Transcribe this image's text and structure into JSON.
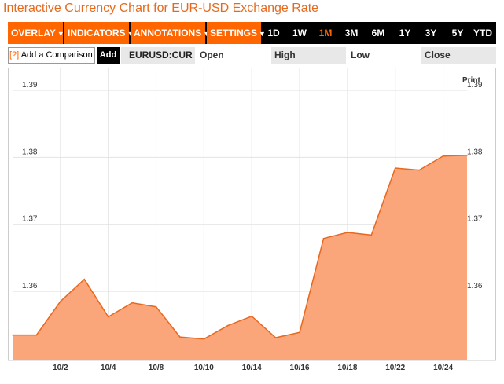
{
  "page": {
    "title": "Interactive Currency Chart for EUR-USD Exchange Rate",
    "print_label": "Print"
  },
  "toolbar": {
    "menus": [
      {
        "label": "OVERLAY",
        "icon": "triangle-down-icon"
      },
      {
        "label": "INDICATORS",
        "icon": "triangle-down-icon"
      },
      {
        "label": "ANNOTATIONS",
        "icon": "triangle-down-icon"
      },
      {
        "label": "SETTINGS",
        "icon": "triangle-down-icon"
      }
    ],
    "ranges": [
      "1D",
      "1W",
      "1M",
      "3M",
      "6M",
      "1Y",
      "3Y",
      "5Y",
      "YTD"
    ],
    "active_range": "1M"
  },
  "comparison": {
    "help_label": "[?]",
    "label": "Add a Comparison",
    "add_label": "Add"
  },
  "quote": {
    "ticker": "EURUSD:CUR",
    "open_label": "Open",
    "high_label": "High",
    "low_label": "Low",
    "close_label": "Close"
  },
  "colors": {
    "accent": "#ff6600",
    "title": "#e66a1e",
    "area_fill": "#fba57a",
    "area_line": "#e8681e"
  },
  "chart_data": {
    "type": "area",
    "x": [
      "9/30",
      "10/1",
      "10/2",
      "10/3",
      "10/4",
      "10/7",
      "10/8",
      "10/9",
      "10/10",
      "10/11",
      "10/14",
      "10/15",
      "10/16",
      "10/17",
      "10/18",
      "10/21",
      "10/22",
      "10/23",
      "10/24",
      "10/25"
    ],
    "values": [
      1.3535,
      1.3535,
      1.3585,
      1.3618,
      1.3562,
      1.3583,
      1.3577,
      1.3532,
      1.3529,
      1.3549,
      1.3563,
      1.3531,
      1.3539,
      1.3679,
      1.3688,
      1.3684,
      1.3784,
      1.3781,
      1.3802,
      1.3803
    ],
    "xticks": [
      "10/2",
      "10/4",
      "10/8",
      "10/10",
      "10/14",
      "10/16",
      "10/18",
      "10/22",
      "10/24"
    ],
    "yticks": [
      "1.36",
      "1.37",
      "1.38",
      "1.39"
    ],
    "ylim": [
      1.3497,
      1.3934
    ],
    "grid": true
  }
}
